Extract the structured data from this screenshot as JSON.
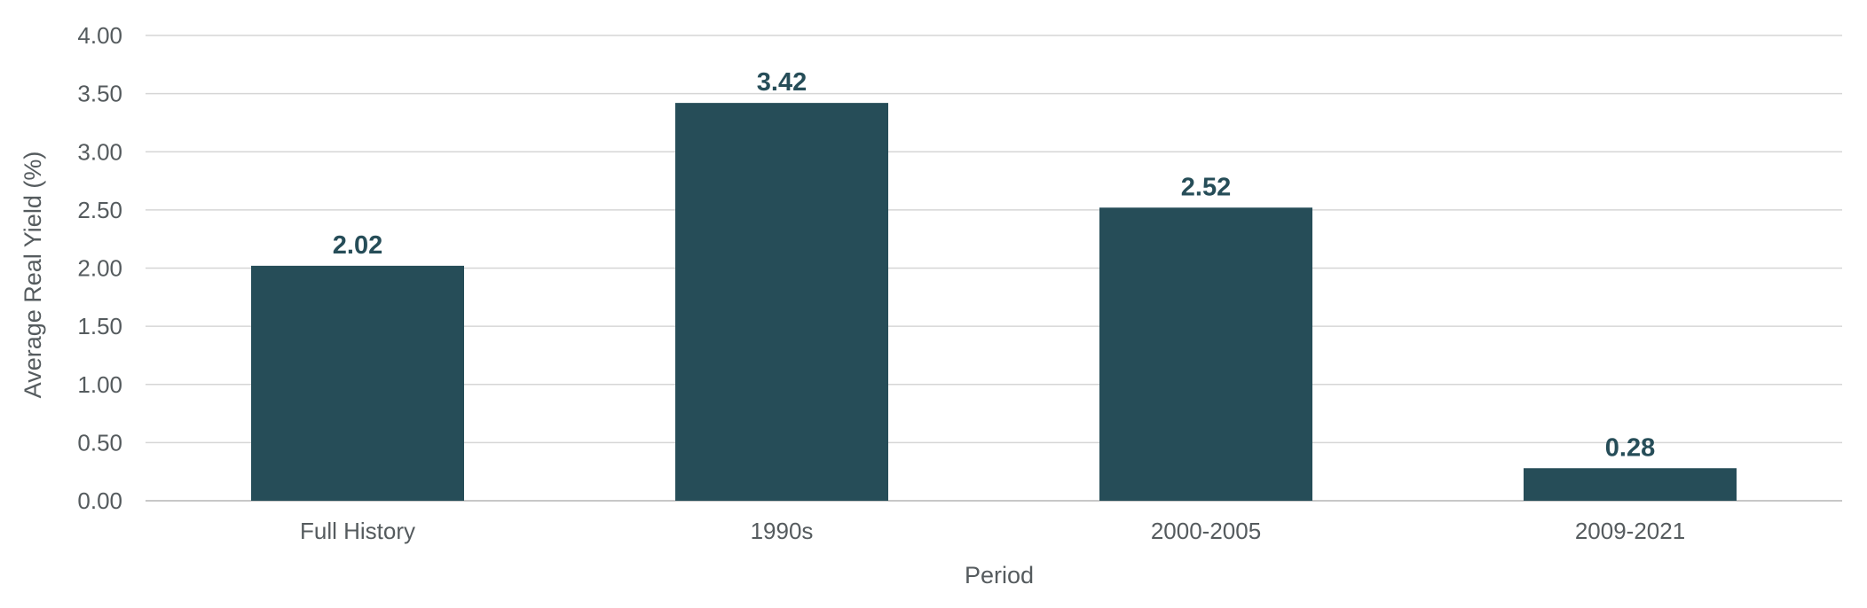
{
  "chart_data": {
    "type": "bar",
    "title": "",
    "xlabel": "Period",
    "ylabel": "Average Real Yield (%)",
    "categories": [
      "Full History",
      "1990s",
      "2000-2005",
      "2009-2021"
    ],
    "values": [
      2.02,
      3.42,
      2.52,
      0.28
    ],
    "data_labels": [
      "2.02",
      "3.42",
      "2.52",
      "0.28"
    ],
    "ylim": [
      0,
      4
    ],
    "yticks": [
      0,
      0.5,
      1,
      1.5,
      2,
      2.5,
      3,
      3.5,
      4
    ],
    "ytick_labels": [
      "0.00",
      "0.50",
      "1.00",
      "1.50",
      "2.00",
      "2.50",
      "3.00",
      "3.50",
      "4.00"
    ],
    "grid": true,
    "legend": "none",
    "bar_color": "#264d58",
    "grid_color": "#d6d6d6",
    "label_color": "#264d58",
    "text_color": "#555b5e"
  }
}
